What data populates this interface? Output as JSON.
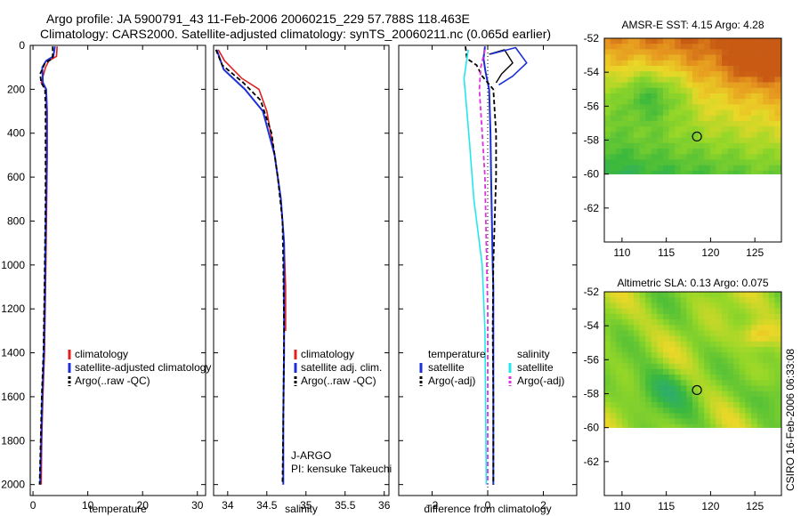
{
  "header": {
    "title_line1": "Argo profile: JA 5900791_43 11-Feb-2006 20060215_229 57.788S 118.463E",
    "title_line2": "Climatology: CARS2000. Satellite-adjusted climatology: synTS_20060211.nc (0.065d earlier)"
  },
  "footer": {
    "credit": "CSIRO 16-Feb-2006 06:33:08"
  },
  "colors": {
    "red": "#e02020",
    "blue": "#1c2fd6",
    "black": "#000000",
    "cyan": "#22e8ee",
    "magenta": "#e030e0"
  },
  "chart_data": [
    {
      "type": "line",
      "name": "temperature-panel",
      "xlabel": "temperature",
      "ylabel": "",
      "xlim": [
        -0.5,
        31.5
      ],
      "ylim": [
        2050,
        0
      ],
      "xticks": [
        0,
        10,
        20,
        30
      ],
      "xtick_labels": [
        "0",
        "10",
        "20",
        "30"
      ],
      "yticks": [
        0,
        200,
        400,
        600,
        800,
        1000,
        1200,
        1400,
        1600,
        1800,
        2000
      ],
      "ytick_labels": [
        "0",
        "200",
        "400",
        "600",
        "800",
        "1000",
        "1200",
        "1400",
        "1600",
        "1800",
        "2000"
      ],
      "series": [
        {
          "name": "climatology",
          "color": "red",
          "dash": "",
          "width": 1.6,
          "points": [
            [
              4.4,
              5
            ],
            [
              4.3,
              50
            ],
            [
              2.9,
              70
            ],
            [
              2.3,
              100
            ],
            [
              1.5,
              170
            ],
            [
              2.4,
              200
            ],
            [
              2.6,
              300
            ],
            [
              2.6,
              500
            ],
            [
              2.5,
              700
            ],
            [
              2.4,
              900
            ],
            [
              2.3,
              1100
            ],
            [
              2.1,
              1400
            ],
            [
              1.8,
              1600
            ],
            [
              1.6,
              1800
            ],
            [
              1.5,
              2000
            ]
          ]
        },
        {
          "name": "satellite-adjusted climatology",
          "color": "blue",
          "dash": "",
          "width": 2,
          "points": [
            [
              4.0,
              5
            ],
            [
              3.7,
              50
            ],
            [
              2.4,
              70
            ],
            [
              1.7,
              100
            ],
            [
              1.8,
              170
            ],
            [
              2.4,
              200
            ],
            [
              2.5,
              300
            ],
            [
              2.5,
              500
            ],
            [
              2.4,
              700
            ],
            [
              2.3,
              900
            ],
            [
              2.2,
              1100
            ],
            [
              2.0,
              1400
            ],
            [
              1.7,
              1600
            ],
            [
              1.5,
              1800
            ],
            [
              1.3,
              2000
            ]
          ]
        },
        {
          "name": "Argo(..raw -QC)",
          "color": "black",
          "dash": "5,3",
          "width": 1.8,
          "points": [
            [
              3.6,
              5
            ],
            [
              3.6,
              60
            ],
            [
              2.2,
              80
            ],
            [
              1.3,
              130
            ],
            [
              1.5,
              170
            ],
            [
              2.2,
              200
            ],
            [
              2.3,
              300
            ],
            [
              2.3,
              500
            ],
            [
              2.3,
              700
            ],
            [
              2.2,
              900
            ],
            [
              2.1,
              1100
            ],
            [
              1.9,
              1400
            ],
            [
              1.6,
              1600
            ],
            [
              1.4,
              1800
            ],
            [
              1.2,
              2000
            ]
          ]
        }
      ],
      "legend": {
        "position": "lower-right",
        "entries": [
          "climatology",
          "satellite-adjusted climatology",
          "Argo(..raw -QC)"
        ]
      }
    },
    {
      "type": "line",
      "name": "salinity-panel",
      "xlabel": "salinity",
      "ylabel": "",
      "xlim": [
        33.82,
        36.06
      ],
      "ylim": [
        2050,
        0
      ],
      "xticks": [
        34,
        34.5,
        35,
        35.5,
        36
      ],
      "xtick_labels": [
        "34",
        "34.5",
        "35",
        "35.5",
        "36"
      ],
      "series": [
        {
          "name": "climatology",
          "color": "red",
          "dash": "",
          "width": 1.6,
          "points": [
            [
              33.88,
              20
            ],
            [
              33.96,
              70
            ],
            [
              34.18,
              150
            ],
            [
              34.4,
              200
            ],
            [
              34.5,
              300
            ],
            [
              34.6,
              500
            ],
            [
              34.68,
              700
            ],
            [
              34.72,
              900
            ],
            [
              34.74,
              1100
            ],
            [
              34.74,
              1300
            ]
          ]
        },
        {
          "name": "satellite adj. clim.",
          "color": "blue",
          "dash": "",
          "width": 2,
          "points": [
            [
              33.86,
              20
            ],
            [
              33.95,
              110
            ],
            [
              34.22,
              200
            ],
            [
              34.45,
              300
            ],
            [
              34.6,
              500
            ],
            [
              34.68,
              700
            ],
            [
              34.72,
              900
            ],
            [
              34.72,
              1100
            ],
            [
              34.72,
              1400
            ],
            [
              34.71,
              1700
            ],
            [
              34.71,
              2000
            ]
          ]
        },
        {
          "name": "Argo(..raw -QC)",
          "color": "black",
          "dash": "5,3",
          "width": 1.8,
          "points": [
            [
              33.85,
              20
            ],
            [
              33.93,
              90
            ],
            [
              34.2,
              170
            ],
            [
              34.42,
              250
            ],
            [
              34.56,
              400
            ],
            [
              34.64,
              600
            ],
            [
              34.7,
              800
            ],
            [
              34.71,
              1000
            ],
            [
              34.72,
              1300
            ],
            [
              34.71,
              1700
            ],
            [
              34.7,
              2000
            ]
          ]
        }
      ],
      "legend": {
        "position": "lower-right",
        "entries": [
          "climatology",
          "satellite adj. clim.",
          "Argo(..raw -QC)"
        ]
      },
      "annotation": [
        "J-ARGO",
        "PI: kensuke Takeuchi"
      ]
    },
    {
      "type": "line",
      "name": "difference-panel",
      "xlabel": "difference from climatology",
      "ylabel": "",
      "xlim": [
        -3.2,
        3.2
      ],
      "ylim": [
        2050,
        0
      ],
      "xticks": [
        -2,
        0,
        2
      ],
      "xtick_labels": [
        "−2",
        "0",
        "2"
      ],
      "series": [
        {
          "name": "temperature satellite",
          "color": "blue",
          "dash": "",
          "width": 2,
          "points": [
            [
              -0.1,
              5
            ],
            [
              -0.15,
              60
            ],
            [
              -0.08,
              120
            ],
            [
              0.05,
              200
            ],
            [
              0.1,
              400
            ],
            [
              0.12,
              600
            ],
            [
              0.15,
              800
            ],
            [
              0.18,
              1000
            ],
            [
              0.2,
              1100
            ],
            [
              0.2,
              1500
            ],
            [
              0.2,
              2000
            ]
          ]
        },
        {
          "name": "temperature Argo(-adj)",
          "color": "black",
          "dash": "5,3",
          "width": 1.8,
          "points": [
            [
              -0.8,
              5
            ],
            [
              -0.75,
              60
            ],
            [
              -0.4,
              90
            ],
            [
              -0.2,
              140
            ],
            [
              0.2,
              200
            ],
            [
              0.3,
              400
            ],
            [
              0.3,
              600
            ],
            [
              0.25,
              800
            ],
            [
              0.2,
              1000
            ],
            [
              0.18,
              1300
            ],
            [
              0.2,
              1600
            ],
            [
              0.2,
              2000
            ]
          ]
        },
        {
          "name": "salinity satellite",
          "color": "cyan",
          "dash": "",
          "width": 1.6,
          "points": [
            [
              -0.7,
              20
            ],
            [
              -0.85,
              150
            ],
            [
              -0.75,
              300
            ],
            [
              -0.65,
              450
            ],
            [
              -0.5,
              700
            ],
            [
              -0.2,
              1000
            ],
            [
              -0.1,
              1300
            ],
            [
              -0.05,
              2000
            ]
          ]
        },
        {
          "name": "salinity Argo(-adj)",
          "color": "magenta",
          "dash": "5,3",
          "width": 1.8,
          "points": [
            [
              -0.1,
              20
            ],
            [
              -0.25,
              100
            ],
            [
              -0.3,
              200
            ],
            [
              -0.2,
              400
            ],
            [
              -0.1,
              600
            ],
            [
              -0.05,
              900
            ],
            [
              0.0,
              1200
            ],
            [
              0.0,
              2000
            ]
          ]
        }
      ],
      "series_extra": [
        {
          "name": "temperature satellite spike",
          "color": "black",
          "dash": "",
          "width": 1.4,
          "points": [
            [
              0.05,
              40
            ],
            [
              0.6,
              20
            ],
            [
              0.9,
              80
            ],
            [
              0.5,
              130
            ],
            [
              0.3,
              170
            ]
          ]
        },
        {
          "name": "temperature satellite spike blue",
          "color": "blue",
          "dash": "",
          "width": 1.6,
          "points": [
            [
              0.1,
              40
            ],
            [
              1.0,
              10
            ],
            [
              1.4,
              80
            ],
            [
              0.9,
              140
            ],
            [
              0.4,
              180
            ]
          ]
        }
      ],
      "legend": {
        "position": "lower-center",
        "col1_title": "temperature",
        "col2_title": "salinity",
        "col1": [
          "satellite",
          "Argo(-adj)"
        ],
        "col2": [
          "satellite",
          "Argo(-adj)"
        ]
      }
    },
    {
      "type": "heatmap",
      "name": "sst-map",
      "title": "AMSR-E SST: 4.15 Argo: 4.28",
      "xlim": [
        108,
        128
      ],
      "ylim": [
        -64,
        -52
      ],
      "xticks": [
        110,
        115,
        120,
        125
      ],
      "xtick_labels": [
        "110",
        "115",
        "120",
        "125"
      ],
      "yticks": [
        -52,
        -54,
        -56,
        -58,
        -60,
        -62
      ],
      "ytick_labels": [
        "-52",
        "-54",
        "-56",
        "-58",
        "-60",
        "-62"
      ],
      "data_coverage_lat_min": -60,
      "marker": {
        "lon": 118.463,
        "lat": -57.788
      }
    },
    {
      "type": "heatmap",
      "name": "sla-map",
      "title": "Altimetric SLA: 0.13 Argo: 0.075",
      "xlim": [
        108,
        128
      ],
      "ylim": [
        -64,
        -52
      ],
      "xticks": [
        110,
        115,
        120,
        125
      ],
      "xtick_labels": [
        "110",
        "115",
        "120",
        "125"
      ],
      "yticks": [
        -52,
        -54,
        -56,
        -58,
        -60,
        -62
      ],
      "ytick_labels": [
        "-52",
        "-54",
        "-56",
        "-58",
        "-60",
        "-62"
      ],
      "data_coverage_lat_min": -60,
      "marker": {
        "lon": 118.463,
        "lat": -57.788
      }
    }
  ]
}
